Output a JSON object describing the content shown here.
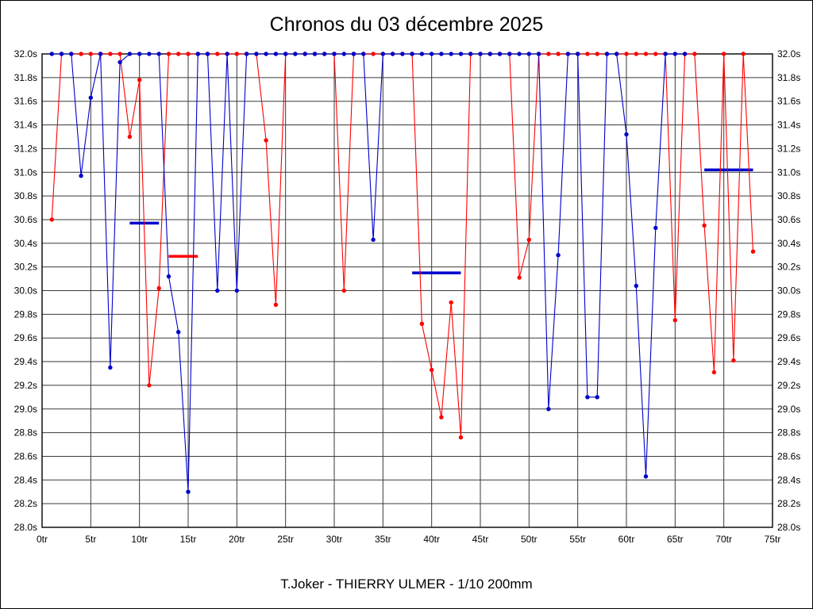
{
  "page": {
    "title": "Chronos du 03 décembre 2025",
    "caption": "T.Joker - THIERRY ULMER - 1/10 200mm"
  },
  "chart_data": {
    "type": "line",
    "title": "Chronos du 03 décembre 2025",
    "subtitle": "T.Joker - THIERRY ULMER - 1/10 200mm",
    "xlabel": "",
    "ylabel": "",
    "x_suffix": "tr",
    "y_suffix": "s",
    "xlim": [
      0,
      75
    ],
    "ylim": [
      28.0,
      32.0
    ],
    "x_tick_step": 5,
    "y_tick_step": 0.2,
    "grid": true,
    "legend": "none",
    "colors": {
      "red": "#ff0000",
      "blue": "#0000cc",
      "grid": "#3a3a3a",
      "axis": "#000000",
      "background": "#ffffff"
    },
    "series": [
      {
        "name": "red-driver",
        "color": "#ff0000",
        "points": [
          [
            1,
            30.6
          ],
          [
            2,
            32
          ],
          [
            3,
            32
          ],
          [
            4,
            32
          ],
          [
            5,
            32
          ],
          [
            6,
            32
          ],
          [
            7,
            32
          ],
          [
            8,
            32
          ],
          [
            9,
            31.3
          ],
          [
            10,
            31.78
          ],
          [
            11,
            29.2
          ],
          [
            12,
            30.02
          ],
          [
            13,
            32
          ],
          [
            14,
            32
          ],
          [
            15,
            32
          ],
          [
            16,
            32
          ],
          [
            17,
            32
          ],
          [
            18,
            32
          ],
          [
            19,
            32
          ],
          [
            20,
            32
          ],
          [
            21,
            32
          ],
          [
            22,
            32
          ],
          [
            23,
            31.27
          ],
          [
            24,
            29.88
          ],
          [
            25,
            32
          ],
          [
            26,
            32
          ],
          [
            27,
            32
          ],
          [
            28,
            32
          ],
          [
            29,
            32
          ],
          [
            30,
            32
          ],
          [
            31,
            30.0
          ],
          [
            32,
            32
          ],
          [
            33,
            32
          ],
          [
            34,
            32
          ],
          [
            35,
            32
          ],
          [
            36,
            32
          ],
          [
            37,
            32
          ],
          [
            38,
            32
          ],
          [
            39,
            29.72
          ],
          [
            40,
            29.33
          ],
          [
            41,
            28.93
          ],
          [
            42,
            29.9
          ],
          [
            43,
            28.76
          ],
          [
            44,
            32
          ],
          [
            45,
            32
          ],
          [
            46,
            32
          ],
          [
            47,
            32
          ],
          [
            48,
            32
          ],
          [
            49,
            30.11
          ],
          [
            50,
            30.43
          ],
          [
            51,
            32
          ],
          [
            52,
            32
          ],
          [
            53,
            32
          ],
          [
            54,
            32
          ],
          [
            55,
            32
          ],
          [
            56,
            32
          ],
          [
            57,
            32
          ],
          [
            58,
            32
          ],
          [
            59,
            32
          ],
          [
            60,
            32
          ],
          [
            61,
            32
          ],
          [
            62,
            32
          ],
          [
            63,
            32
          ],
          [
            64,
            32
          ],
          [
            65,
            29.75
          ],
          [
            66,
            32
          ],
          [
            67,
            32
          ],
          [
            68,
            30.55
          ],
          [
            69,
            29.31
          ],
          [
            70,
            32
          ],
          [
            71,
            29.41
          ],
          [
            72,
            32
          ],
          [
            73,
            30.33
          ]
        ]
      },
      {
        "name": "blue-driver",
        "color": "#0000cc",
        "points": [
          [
            1,
            32
          ],
          [
            2,
            32
          ],
          [
            3,
            32
          ],
          [
            4,
            30.97
          ],
          [
            5,
            31.63
          ],
          [
            6,
            32
          ],
          [
            7,
            29.35
          ],
          [
            8,
            31.93
          ],
          [
            9,
            32
          ],
          [
            10,
            32
          ],
          [
            11,
            32
          ],
          [
            12,
            32
          ],
          [
            13,
            30.12
          ],
          [
            14,
            29.65
          ],
          [
            15,
            28.3
          ],
          [
            16,
            32
          ],
          [
            17,
            32
          ],
          [
            18,
            30.0
          ],
          [
            19,
            32
          ],
          [
            20,
            30.0
          ],
          [
            21,
            32
          ],
          [
            22,
            32
          ],
          [
            23,
            32
          ],
          [
            24,
            32
          ],
          [
            25,
            32
          ],
          [
            26,
            32
          ],
          [
            27,
            32
          ],
          [
            28,
            32
          ],
          [
            29,
            32
          ],
          [
            30,
            32
          ],
          [
            31,
            32
          ],
          [
            32,
            32
          ],
          [
            33,
            32
          ],
          [
            34,
            30.43
          ],
          [
            35,
            32
          ],
          [
            36,
            32
          ],
          [
            37,
            32
          ],
          [
            38,
            32
          ],
          [
            39,
            32
          ],
          [
            40,
            32
          ],
          [
            41,
            32
          ],
          [
            42,
            32
          ],
          [
            43,
            32
          ],
          [
            44,
            32
          ],
          [
            45,
            32
          ],
          [
            46,
            32
          ],
          [
            47,
            32
          ],
          [
            48,
            32
          ],
          [
            49,
            32
          ],
          [
            50,
            32
          ],
          [
            51,
            32
          ],
          [
            52,
            29.0
          ],
          [
            53,
            30.3
          ],
          [
            54,
            32
          ],
          [
            55,
            32
          ],
          [
            56,
            29.1
          ],
          [
            57,
            29.1
          ],
          [
            58,
            32
          ],
          [
            59,
            32
          ],
          [
            60,
            31.32
          ],
          [
            61,
            30.04
          ],
          [
            62,
            28.43
          ],
          [
            63,
            30.53
          ],
          [
            64,
            32
          ],
          [
            65,
            32
          ],
          [
            66,
            32
          ]
        ]
      }
    ],
    "average_segments": [
      {
        "name": "blue-average-1",
        "color": "#0000cc",
        "from": 9,
        "to": 12,
        "value": 30.57
      },
      {
        "name": "red-average-1",
        "color": "#ff0000",
        "from": 13,
        "to": 16,
        "value": 30.29
      },
      {
        "name": "blue-average-2",
        "color": "#0000cc",
        "from": 38,
        "to": 43,
        "value": 30.15
      },
      {
        "name": "blue-average-3",
        "color": "#0000cc",
        "from": 68,
        "to": 73,
        "value": 31.02
      }
    ],
    "y_tick_labels": [
      "32.0s",
      "31.8s",
      "31.6s",
      "31.4s",
      "31.2s",
      "31.0s",
      "30.8s",
      "30.6s",
      "30.4s",
      "30.2s",
      "30.0s",
      "29.8s",
      "29.6s",
      "29.4s",
      "29.2s",
      "29.0s",
      "28.8s",
      "28.6s",
      "28.4s",
      "28.2s",
      "28.0s"
    ],
    "x_tick_labels": [
      "0tr",
      "5tr",
      "10tr",
      "15tr",
      "20tr",
      "25tr",
      "30tr",
      "35tr",
      "40tr",
      "45tr",
      "50tr",
      "55tr",
      "60tr",
      "65tr",
      "70tr",
      "75tr"
    ]
  }
}
